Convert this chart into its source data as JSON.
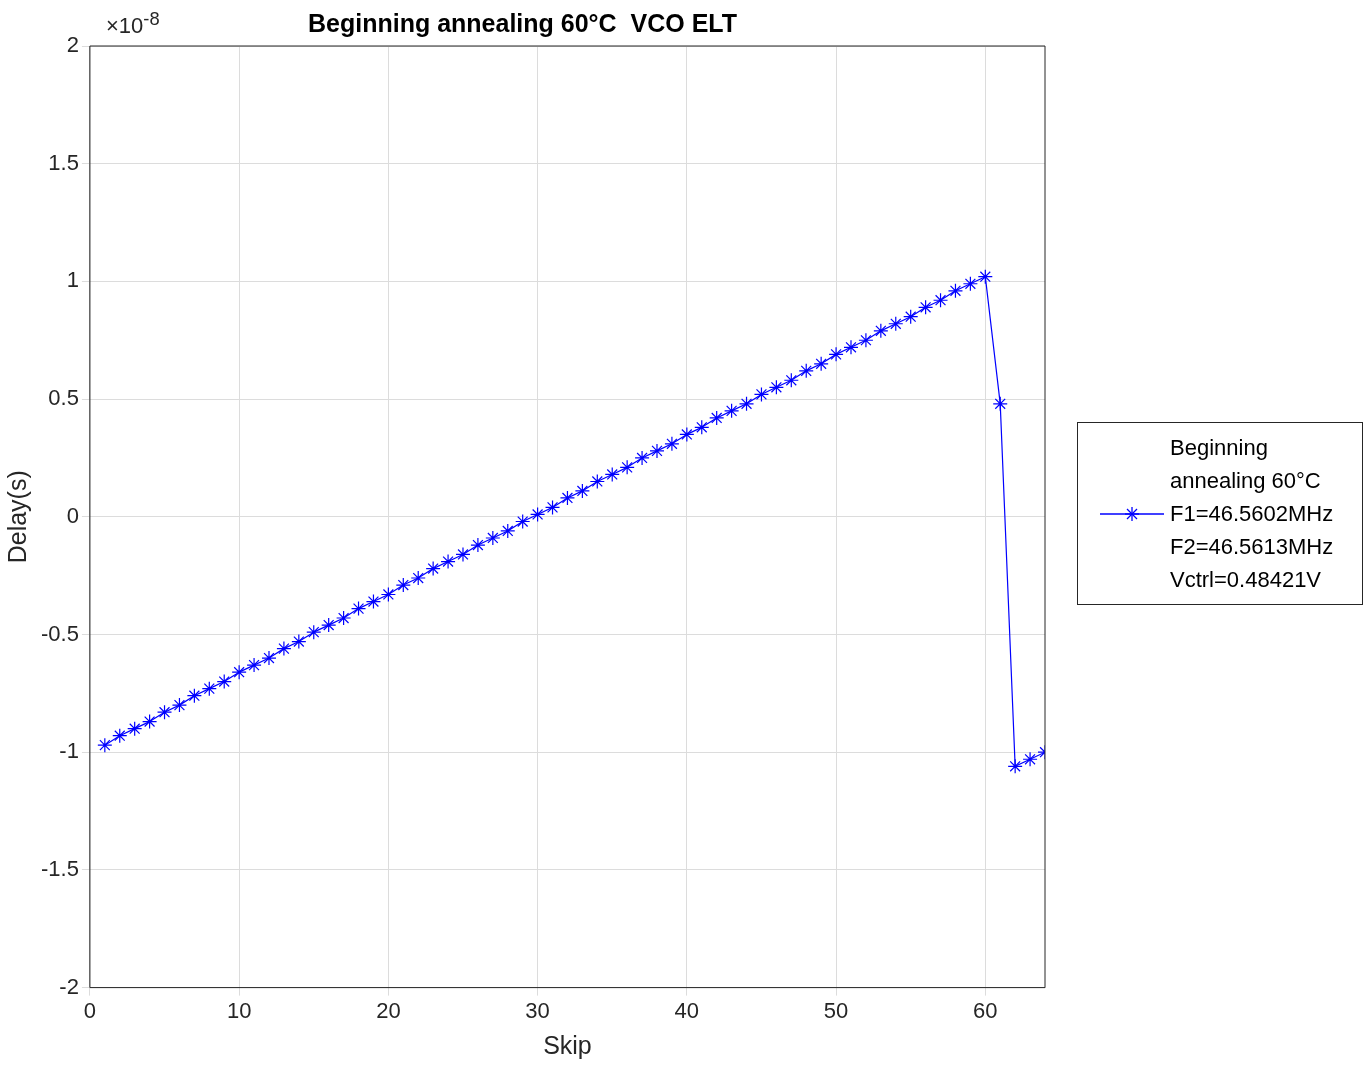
{
  "chart_data": {
    "type": "line",
    "title": "Beginning annealing 60°C  VCO ELT",
    "xlabel": "Skip",
    "ylabel": "Delay(s)",
    "annotations": [
      "×10$^{-8}$"
    ],
    "x": [
      1,
      2,
      3,
      4,
      5,
      6,
      7,
      8,
      9,
      10,
      11,
      12,
      13,
      14,
      15,
      16,
      17,
      18,
      19,
      20,
      21,
      22,
      23,
      24,
      25,
      26,
      27,
      28,
      29,
      30,
      31,
      32,
      33,
      34,
      35,
      36,
      37,
      38,
      39,
      40,
      41,
      42,
      43,
      44,
      45,
      46,
      47,
      48,
      49,
      50,
      51,
      52,
      53,
      54,
      55,
      56,
      57,
      58,
      59,
      60,
      61,
      62,
      63,
      64
    ],
    "series": [
      {
        "name": "Beginning annealing 60°C F1=46.5602MHz F2=46.5613MHz Vctrl=0.48421V",
        "color": "#0000ff",
        "values": [
          -0.97,
          -0.93,
          -0.9,
          -0.87,
          -0.83,
          -0.8,
          -0.76,
          -0.73,
          -0.7,
          -0.66,
          -0.63,
          -0.6,
          -0.56,
          -0.53,
          -0.49,
          -0.46,
          -0.43,
          -0.39,
          -0.36,
          -0.33,
          -0.29,
          -0.26,
          -0.22,
          -0.19,
          -0.16,
          -0.12,
          -0.09,
          -0.06,
          -0.02,
          0.01,
          0.04,
          0.08,
          0.11,
          0.15,
          0.18,
          0.21,
          0.25,
          0.28,
          0.31,
          0.35,
          0.38,
          0.42,
          0.45,
          0.48,
          0.52,
          0.55,
          0.58,
          0.62,
          0.65,
          0.69,
          0.72,
          0.75,
          0.79,
          0.82,
          0.85,
          0.89,
          0.92,
          0.96,
          0.99,
          1.02,
          0.48,
          -1.06,
          -1.03,
          -1.0
        ]
      }
    ],
    "xlim": [
      0,
      64
    ],
    "xticks": [
      0,
      10,
      20,
      30,
      40,
      50,
      60
    ],
    "ylim": [
      -2,
      2
    ],
    "yticks": [
      -2,
      -1.5,
      -1,
      -0.5,
      0,
      0.5,
      1,
      1.5,
      2
    ],
    "grid": true,
    "legend": "right",
    "marker": "cross",
    "line_style": "solid"
  }
}
